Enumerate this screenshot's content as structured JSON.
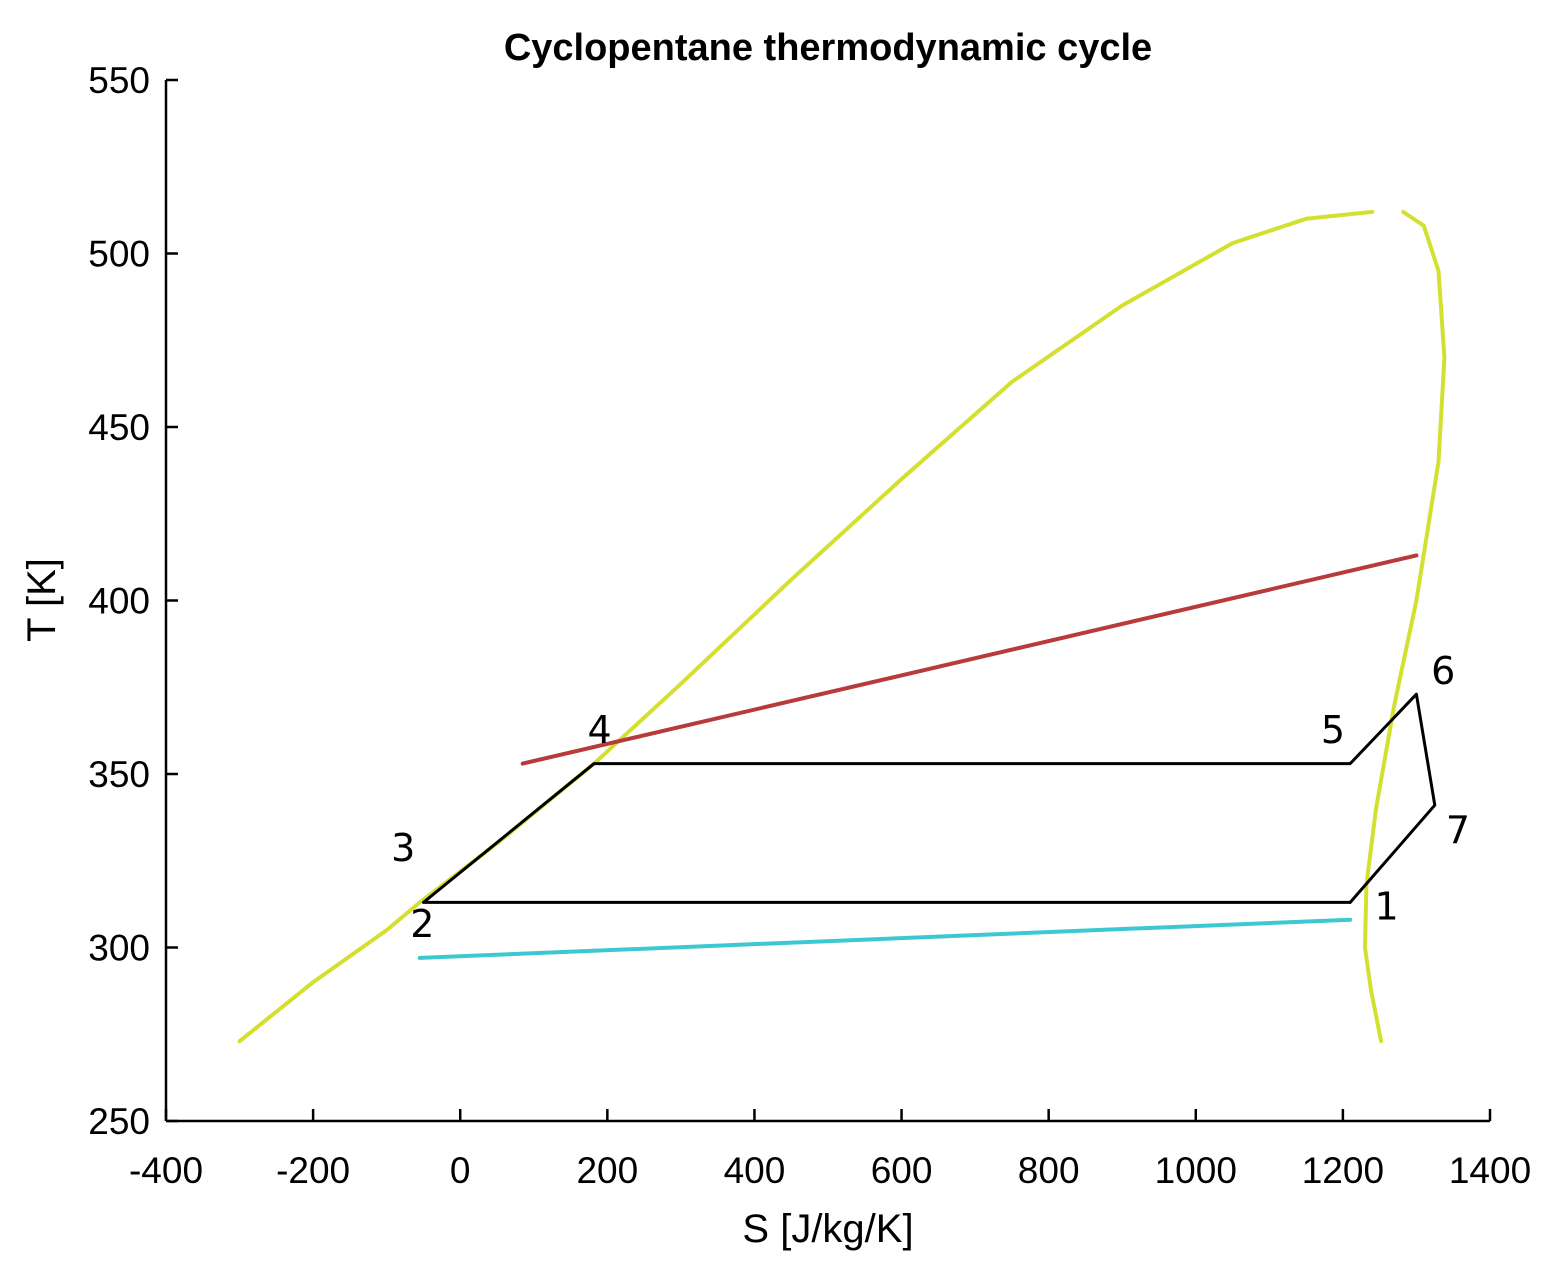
{
  "chart_data": {
    "type": "line",
    "title": "Cyclopentane thermodynamic cycle",
    "xlabel": "S [J/kg/K]",
    "ylabel": "T [K]",
    "xlim": [
      -400,
      1400
    ],
    "ylim": [
      250,
      550
    ],
    "xticks": [
      -400,
      -200,
      0,
      200,
      400,
      600,
      800,
      1000,
      1200,
      1400
    ],
    "yticks": [
      250,
      300,
      350,
      400,
      450,
      500,
      550
    ],
    "grid": false,
    "series": [
      {
        "name": "saturation-liquid",
        "color": "#d4e030",
        "points": [
          [
            -300,
            273
          ],
          [
            -200,
            290
          ],
          [
            -100,
            305
          ],
          [
            -55,
            313
          ],
          [
            50,
            330
          ],
          [
            182,
            353
          ],
          [
            300,
            376
          ],
          [
            450,
            406
          ],
          [
            600,
            435
          ],
          [
            750,
            463
          ],
          [
            900,
            485
          ],
          [
            1050,
            503
          ],
          [
            1150,
            510
          ],
          [
            1240,
            512
          ]
        ]
      },
      {
        "name": "saturation-vapor",
        "color": "#d4e030",
        "points": [
          [
            1282,
            512
          ],
          [
            1310,
            508
          ],
          [
            1330,
            495
          ],
          [
            1338,
            470
          ],
          [
            1330,
            440
          ],
          [
            1300,
            400
          ],
          [
            1270,
            370
          ],
          [
            1245,
            340
          ],
          [
            1232,
            318
          ],
          [
            1230,
            300
          ],
          [
            1238,
            288
          ],
          [
            1252,
            273
          ]
        ]
      },
      {
        "name": "heat-source",
        "color": "#b83a3a",
        "points": [
          [
            85,
            353
          ],
          [
            1300,
            413
          ]
        ]
      },
      {
        "name": "cooling-water",
        "color": "#3cc8d0",
        "points": [
          [
            -55,
            297
          ],
          [
            1210,
            308
          ]
        ]
      },
      {
        "name": "cycle",
        "color": "#000000",
        "points": [
          [
            1210,
            313
          ],
          [
            -50,
            313
          ],
          [
            182,
            353
          ],
          [
            1210,
            353
          ],
          [
            1300,
            373
          ],
          [
            1325,
            341
          ],
          [
            1210,
            313
          ]
        ]
      }
    ],
    "annotations": [
      {
        "label": "1",
        "x": 1243,
        "y": 308
      },
      {
        "label": "2",
        "x": -68,
        "y": 303
      },
      {
        "label": "3",
        "x": -94,
        "y": 325
      },
      {
        "label": "4",
        "x": 173,
        "y": 359
      },
      {
        "label": "5",
        "x": 1170,
        "y": 359
      },
      {
        "label": "6",
        "x": 1320,
        "y": 376
      },
      {
        "label": "7",
        "x": 1340,
        "y": 330
      }
    ]
  }
}
